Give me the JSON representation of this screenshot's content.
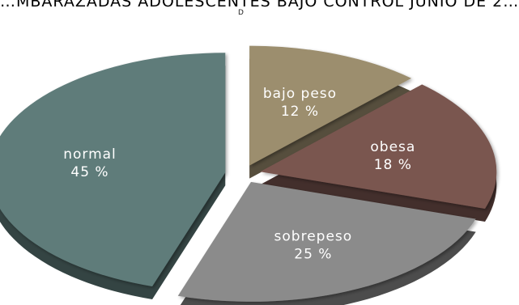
{
  "chart_data": {
    "type": "pie",
    "title": "…MBARAZADAS ADOLESCENTES BAJO CONTROL JUNIO DE 2…",
    "subtitle": "D",
    "slices": [
      {
        "label": "bajo peso",
        "value": 12,
        "value_label": "12 %",
        "color": "#9c8e6e",
        "exploded": true
      },
      {
        "label": "obesa",
        "value": 18,
        "value_label": "18 %",
        "color": "#7a5650",
        "exploded": true
      },
      {
        "label": "sobrepeso",
        "value": 25,
        "value_label": "25 %",
        "color": "#8b8b8b",
        "exploded": true
      },
      {
        "label": "normal",
        "value": 45,
        "value_label": "45 %",
        "color": "#5e7c7a",
        "exploded": true
      }
    ],
    "label_color": "#ffffff",
    "legend": "none",
    "style": "3d-exploded"
  }
}
